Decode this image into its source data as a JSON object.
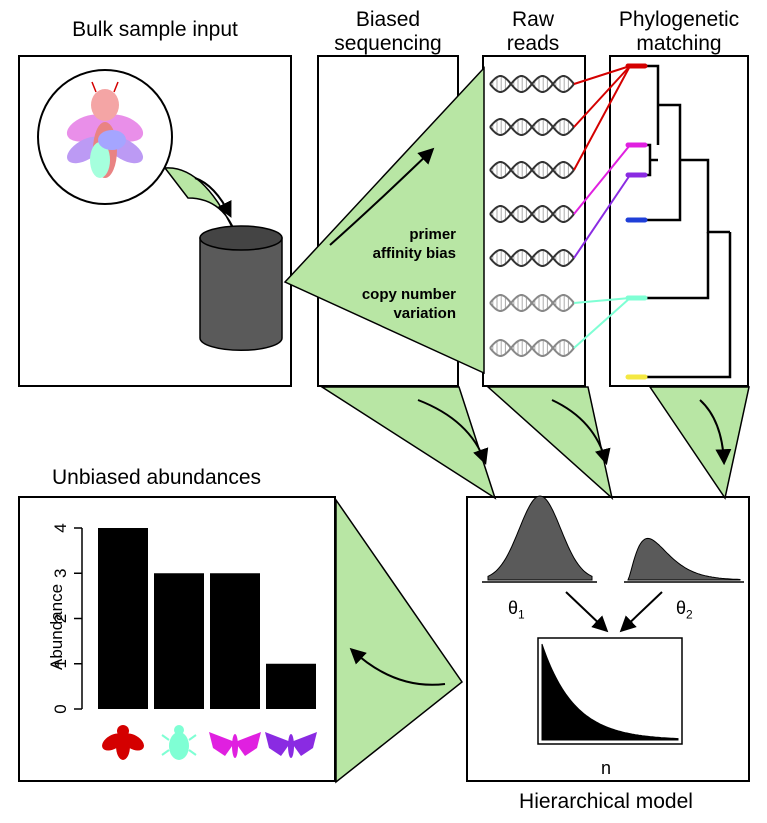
{
  "titles": {
    "bulk": "Bulk sample input",
    "biased_line1": "Biased",
    "biased_line2": "sequencing",
    "raw_line1": "Raw",
    "raw_line2": "reads",
    "phylo_line1": "Phylogenetic",
    "phylo_line2": "matching",
    "unbiased": "Unbiased abundances",
    "hierarchical": "Hierarchical model"
  },
  "bias_labels": {
    "primer_line1": "primer",
    "primer_line2": "affinity bias",
    "copy_line1": "copy number",
    "copy_line2": "variation"
  },
  "model": {
    "theta1": "θ1",
    "theta2": "θ2",
    "theta_symbol": "θ",
    "theta1_sub": "1",
    "theta2_sub": "2",
    "n_label": "n"
  },
  "colors": {
    "green_fill": "#b8e6a4",
    "red": "#d40000",
    "cyan": "#7fffd4",
    "magenta": "#e020e0",
    "purple": "#8a2be2",
    "blue": "#1f3fd8",
    "yellow": "#f4e842",
    "dark_gray": "#5a5a5a"
  },
  "read_colors": [
    "red",
    "red",
    "red",
    "magenta",
    "purple",
    "cyan",
    "cyan"
  ],
  "tip_colors": [
    "red",
    "magenta",
    "purple",
    "blue",
    "cyan",
    "yellow"
  ],
  "icons": [
    "fly-icon",
    "beetle-icon",
    "moth-icon",
    "moth-icon"
  ],
  "chart_data": {
    "type": "bar",
    "ylabel": "Abundance",
    "xlabel": "",
    "yticks": [
      0,
      1,
      2,
      3,
      4
    ],
    "ylim": [
      0,
      4
    ],
    "values": [
      4,
      3,
      3,
      1
    ],
    "category_colors": [
      "#d40000",
      "#7fffd4",
      "#e020e0",
      "#8a2be2"
    ],
    "grid": false
  }
}
